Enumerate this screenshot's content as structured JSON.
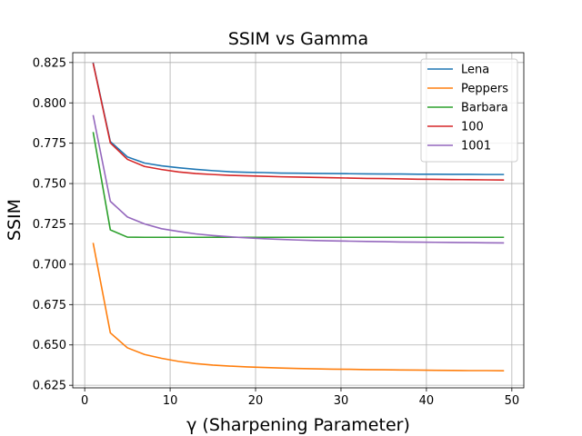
{
  "chart_data": {
    "type": "line",
    "title": "SSIM vs Gamma",
    "xlabel": "γ (Sharpening Parameter)",
    "ylabel": "SSIM",
    "xlim": [
      -1.4,
      51.4
    ],
    "ylim": [
      0.6234,
      0.8311
    ],
    "xticks": [
      0,
      10,
      20,
      30,
      40,
      50
    ],
    "yticks": [
      0.625,
      0.65,
      0.675,
      0.7,
      0.725,
      0.75,
      0.775,
      0.8,
      0.825
    ],
    "ytick_labels": [
      "0.625",
      "0.650",
      "0.675",
      "0.700",
      "0.725",
      "0.750",
      "0.775",
      "0.800",
      "0.825"
    ],
    "grid": true,
    "legend_position": "top-right",
    "x": [
      1,
      3,
      5,
      7,
      9,
      11,
      13,
      15,
      17,
      19,
      21,
      23,
      25,
      27,
      29,
      31,
      33,
      35,
      37,
      39,
      41,
      43,
      45,
      47,
      49
    ],
    "series": [
      {
        "name": "Lena",
        "color": "#1f77b4",
        "values": [
          0.8245,
          0.776,
          0.7665,
          0.7627,
          0.761,
          0.7598,
          0.7588,
          0.758,
          0.7573,
          0.757,
          0.7568,
          0.7565,
          0.7564,
          0.7563,
          0.7562,
          0.7561,
          0.756,
          0.7559,
          0.7559,
          0.7558,
          0.7558,
          0.7557,
          0.7557,
          0.7556,
          0.7556
        ]
      },
      {
        "name": "Peppers",
        "color": "#ff7f0e",
        "values": [
          0.7128,
          0.6575,
          0.6482,
          0.6441,
          0.6417,
          0.6398,
          0.6384,
          0.6375,
          0.6369,
          0.6364,
          0.636,
          0.6357,
          0.6354,
          0.6352,
          0.635,
          0.6349,
          0.6347,
          0.6346,
          0.6345,
          0.6344,
          0.6343,
          0.6342,
          0.6341,
          0.6341,
          0.634
        ]
      },
      {
        "name": "Barbara",
        "color": "#2ca02c",
        "values": [
          0.7815,
          0.7213,
          0.7168,
          0.7167,
          0.7167,
          0.7167,
          0.7167,
          0.7167,
          0.7167,
          0.7167,
          0.7167,
          0.7167,
          0.7167,
          0.7167,
          0.7167,
          0.7167,
          0.7167,
          0.7167,
          0.7167,
          0.7167,
          0.7167,
          0.7167,
          0.7167,
          0.7167,
          0.7167
        ]
      },
      {
        "name": "100",
        "color": "#d62728",
        "values": [
          0.8242,
          0.7752,
          0.765,
          0.7606,
          0.7587,
          0.7572,
          0.7562,
          0.7556,
          0.7551,
          0.7548,
          0.7545,
          0.7542,
          0.754,
          0.7538,
          0.7536,
          0.7534,
          0.7532,
          0.7531,
          0.7529,
          0.7527,
          0.7526,
          0.7525,
          0.7524,
          0.7523,
          0.7522
        ]
      },
      {
        "name": "1001",
        "color": "#9467bd",
        "values": [
          0.792,
          0.739,
          0.7293,
          0.725,
          0.722,
          0.7203,
          0.7188,
          0.7178,
          0.717,
          0.7164,
          0.7158,
          0.7154,
          0.715,
          0.7147,
          0.7145,
          0.7143,
          0.7141,
          0.714,
          0.7138,
          0.7137,
          0.7136,
          0.7135,
          0.7134,
          0.7133,
          0.7132
        ]
      }
    ]
  }
}
